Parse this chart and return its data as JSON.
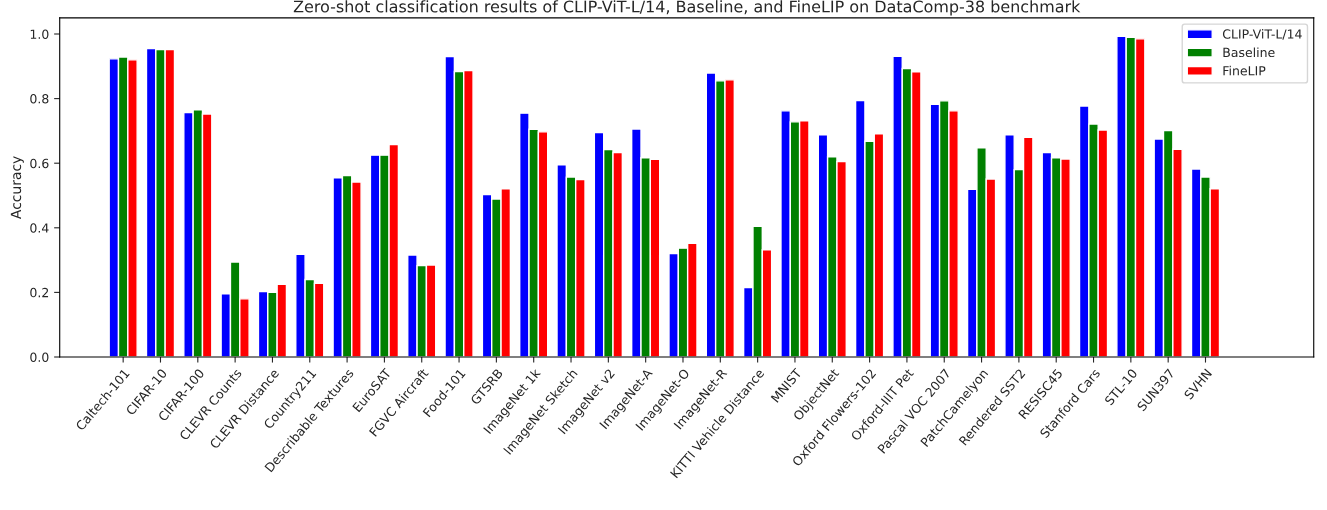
{
  "chart_data": {
    "type": "bar",
    "title": "Zero-shot classification results of CLIP-ViT-L/14, Baseline, and FineLIP on DataComp-38 benchmark",
    "ylabel": "Accuracy",
    "categories": [
      "Caltech-101",
      "CIFAR-10",
      "CIFAR-100",
      "CLEVR Counts",
      "CLEVR Distance",
      "Country211",
      "Describable Textures",
      "EuroSAT",
      "FGVC Aircraft",
      "Food-101",
      "GTSRB",
      "ImageNet 1k",
      "ImageNet Sketch",
      "ImageNet v2",
      "ImageNet-A",
      "ImageNet-O",
      "ImageNet-R",
      "KITTI Vehicle Distance",
      "MNIST",
      "ObjectNet",
      "Oxford Flowers-102",
      "Oxford-IIIT Pet",
      "Pascal VOC 2007",
      "PatchCamelyon",
      "Rendered SST2",
      "RESISC45",
      "Stanford Cars",
      "STL-10",
      "SUN397",
      "SVHN"
    ],
    "series": [
      {
        "name": "CLIP-ViT-L/14",
        "color": "#0000ff",
        "values": [
          0.923,
          0.955,
          0.757,
          0.196,
          0.203,
          0.318,
          0.555,
          0.625,
          0.316,
          0.93,
          0.503,
          0.755,
          0.595,
          0.695,
          0.706,
          0.32,
          0.879,
          0.215,
          0.762,
          0.688,
          0.794,
          0.931,
          0.782,
          0.519,
          0.688,
          0.633,
          0.777,
          0.993,
          0.675,
          0.582
        ]
      },
      {
        "name": "Baseline",
        "color": "#008000",
        "values": [
          0.929,
          0.952,
          0.765,
          0.294,
          0.2,
          0.24,
          0.562,
          0.625,
          0.283,
          0.884,
          0.489,
          0.705,
          0.557,
          0.642,
          0.617,
          0.337,
          0.855,
          0.405,
          0.728,
          0.62,
          0.668,
          0.893,
          0.793,
          0.648,
          0.58,
          0.617,
          0.721,
          0.99,
          0.701,
          0.557
        ]
      },
      {
        "name": "FineLIP",
        "color": "#ff0000",
        "values": [
          0.92,
          0.952,
          0.752,
          0.18,
          0.225,
          0.228,
          0.542,
          0.658,
          0.285,
          0.887,
          0.521,
          0.697,
          0.549,
          0.633,
          0.612,
          0.352,
          0.858,
          0.332,
          0.731,
          0.605,
          0.691,
          0.883,
          0.762,
          0.551,
          0.68,
          0.613,
          0.703,
          0.985,
          0.643,
          0.521
        ]
      }
    ],
    "ylim": [
      0,
      1.05
    ],
    "yticks": [
      {
        "value": 0,
        "label": "0.0"
      },
      {
        "value": 0.2,
        "label": "0.2"
      },
      {
        "value": 0.4,
        "label": "0.4"
      },
      {
        "value": 0.6,
        "label": "0.6"
      },
      {
        "value": 0.8,
        "label": "0.8"
      },
      {
        "value": 1,
        "label": "1.0"
      }
    ],
    "legend": "top right"
  }
}
